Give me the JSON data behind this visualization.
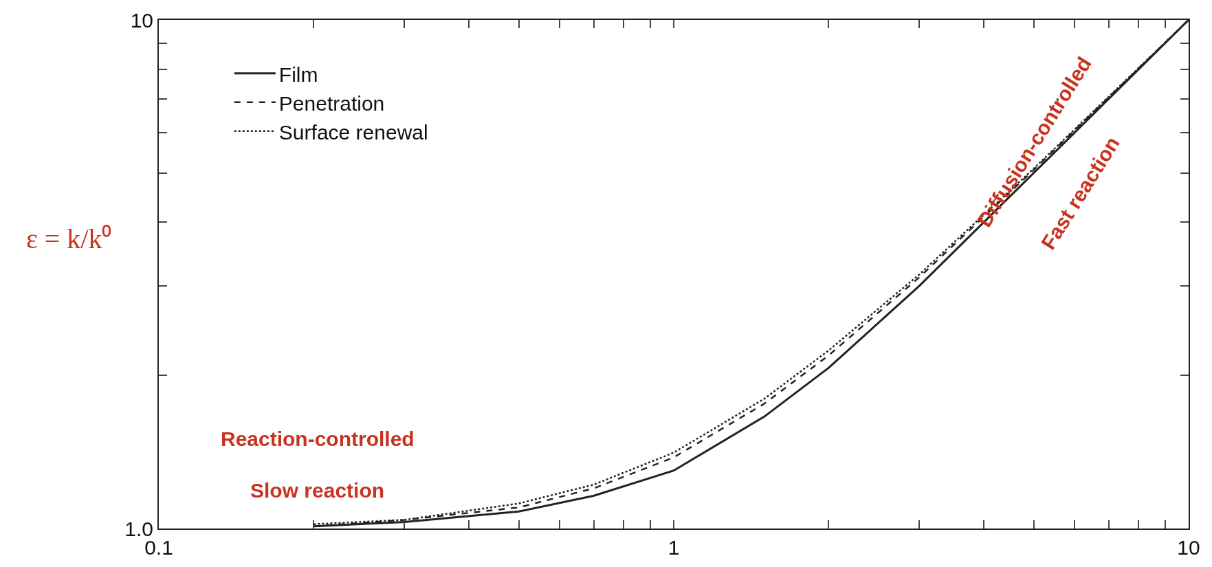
{
  "chart_data": {
    "type": "line",
    "ylabel": "ε = k/k⁰",
    "log": "xy",
    "xlim": [
      0.1,
      10
    ],
    "ylim": [
      1.0,
      10
    ],
    "xticks": [
      {
        "value": 0.1,
        "label": "0.1"
      },
      {
        "value": 0.2,
        "label": null
      },
      {
        "value": 0.3,
        "label": null
      },
      {
        "value": 0.4,
        "label": null
      },
      {
        "value": 0.5,
        "label": null
      },
      {
        "value": 0.6,
        "label": null
      },
      {
        "value": 0.7,
        "label": null
      },
      {
        "value": 0.8,
        "label": null
      },
      {
        "value": 0.9,
        "label": null
      },
      {
        "value": 1,
        "label": "1"
      },
      {
        "value": 2,
        "label": null
      },
      {
        "value": 3,
        "label": null
      },
      {
        "value": 4,
        "label": null
      },
      {
        "value": 5,
        "label": null
      },
      {
        "value": 6,
        "label": null
      },
      {
        "value": 7,
        "label": null
      },
      {
        "value": 8,
        "label": null
      },
      {
        "value": 9,
        "label": null
      },
      {
        "value": 10,
        "label": "10"
      }
    ],
    "yticks": [
      {
        "value": 1.0,
        "label": "1.0"
      },
      {
        "value": 2,
        "label": null
      },
      {
        "value": 3,
        "label": null
      },
      {
        "value": 4,
        "label": null
      },
      {
        "value": 5,
        "label": null
      },
      {
        "value": 6,
        "label": null
      },
      {
        "value": 7,
        "label": null
      },
      {
        "value": 8,
        "label": null
      },
      {
        "value": 9,
        "label": null
      },
      {
        "value": 10,
        "label": "10"
      }
    ],
    "x": [
      0.2,
      0.3,
      0.5,
      0.7,
      1,
      1.5,
      2,
      3,
      5,
      7,
      10
    ],
    "series": [
      {
        "name": "Film",
        "color": "#222222",
        "line_style": "solid",
        "values": [
          1.01,
          1.03,
          1.08,
          1.16,
          1.3,
          1.66,
          2.07,
          3.0,
          5.0,
          7.0,
          10
        ]
      },
      {
        "name": "Penetration",
        "color": "#222222",
        "line_style": "dashed",
        "values": [
          1.01,
          1.04,
          1.1,
          1.2,
          1.38,
          1.76,
          2.19,
          3.12,
          5.07,
          7.05,
          10
        ]
      },
      {
        "name": "Surface renewal",
        "color": "#222222",
        "line_style": "dotted",
        "values": [
          1.02,
          1.04,
          1.12,
          1.22,
          1.41,
          1.8,
          2.24,
          3.16,
          5.1,
          7.07,
          10
        ]
      }
    ],
    "annotations": [
      "Reaction-controlled",
      "Slow reaction",
      "Diffusion-controlled",
      "Fast reaction"
    ],
    "legend": "top left",
    "marker": "none"
  }
}
